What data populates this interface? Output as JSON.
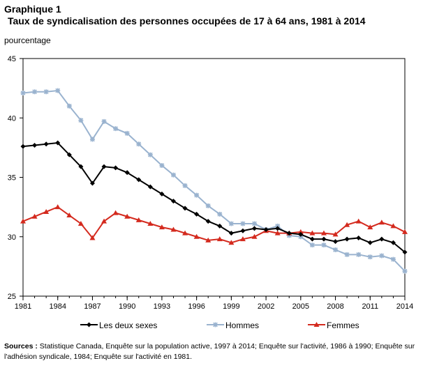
{
  "header": {
    "title": "Graphique 1",
    "subtitle": "Taux de syndicalisation des personnes occupées de 17 à 64 ans, 1981 à 2014",
    "ylabel": "pourcentage"
  },
  "footer": {
    "sources_label": "Sources :",
    "sources_text": " Statistique Canada, Enquête sur la population active, 1997 à 2014;  Enquête sur l'activité, 1986 à 1990; Enquête sur l'adhésion syndicale, 1984; Enquête sur l'activité en 1981."
  },
  "colors": {
    "deux": "#000000",
    "hommes": "#9ab3cf",
    "femmes": "#d42a1e"
  },
  "chart_data": {
    "type": "line",
    "ylabel": "pourcentage",
    "ylim": [
      25,
      45
    ],
    "yticks": [
      25,
      30,
      35,
      40,
      45
    ],
    "xlim": [
      1981,
      2014
    ],
    "xticks": [
      1981,
      1984,
      1987,
      1990,
      1993,
      1996,
      1999,
      2002,
      2005,
      2008,
      2011,
      2014
    ],
    "legend_position": "bottom",
    "grid": false,
    "x": [
      1981,
      1982,
      1983,
      1984,
      1985,
      1986,
      1987,
      1988,
      1989,
      1990,
      1991,
      1992,
      1993,
      1994,
      1995,
      1996,
      1997,
      1998,
      1999,
      2000,
      2001,
      2002,
      2003,
      2004,
      2005,
      2006,
      2007,
      2008,
      2009,
      2010,
      2011,
      2012,
      2013,
      2014
    ],
    "series": [
      {
        "name": "Les deux sexes",
        "color": "#000000",
        "marker": "diamond",
        "values": [
          37.6,
          37.7,
          37.8,
          37.9,
          36.9,
          35.9,
          34.5,
          35.9,
          35.8,
          35.4,
          34.8,
          34.2,
          33.6,
          33.0,
          32.4,
          31.9,
          31.3,
          30.9,
          30.3,
          30.5,
          30.7,
          30.6,
          30.7,
          30.3,
          30.2,
          29.8,
          29.8,
          29.6,
          29.8,
          29.9,
          29.5,
          29.8,
          29.5,
          28.7
        ]
      },
      {
        "name": "Hommes",
        "color": "#9ab3cf",
        "marker": "asterisk",
        "values": [
          42.1,
          42.2,
          42.2,
          42.3,
          41.0,
          39.8,
          38.2,
          39.7,
          39.1,
          38.7,
          37.8,
          36.9,
          36.0,
          35.2,
          34.3,
          33.5,
          32.6,
          31.9,
          31.1,
          31.1,
          31.1,
          30.6,
          30.9,
          30.1,
          30.0,
          29.3,
          29.3,
          28.9,
          28.5,
          28.5,
          28.3,
          28.4,
          28.1,
          27.1
        ]
      },
      {
        "name": "Femmes",
        "color": "#d42a1e",
        "marker": "triangle",
        "values": [
          31.3,
          31.7,
          32.1,
          32.5,
          31.8,
          31.1,
          29.9,
          31.3,
          32.0,
          31.7,
          31.4,
          31.1,
          30.8,
          30.6,
          30.3,
          30.0,
          29.7,
          29.8,
          29.5,
          29.8,
          30.0,
          30.5,
          30.3,
          30.3,
          30.4,
          30.3,
          30.3,
          30.2,
          31.0,
          31.3,
          30.8,
          31.2,
          30.9,
          30.4
        ]
      }
    ]
  }
}
